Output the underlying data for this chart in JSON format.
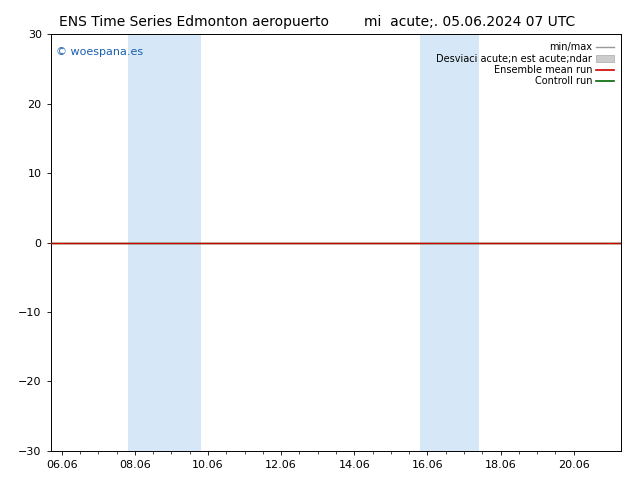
{
  "title_left": "ENS Time Series Edmonton aeropuerto",
  "title_right": "mi  acute;. 05.06.2024 07 UTC",
  "watermark": "© woespana.es",
  "ylim": [
    -30,
    30
  ],
  "yticks": [
    -30,
    -20,
    -10,
    0,
    10,
    20,
    30
  ],
  "xtick_labels": [
    "06.06",
    "08.06",
    "10.06",
    "12.06",
    "14.06",
    "16.06",
    "18.06",
    "20.06"
  ],
  "xtick_positions": [
    0,
    2,
    4,
    6,
    8,
    10,
    12,
    14
  ],
  "xmin": -0.3,
  "xmax": 15.3,
  "shaded_bands": [
    {
      "x_start": 1.8,
      "x_end": 3.8
    },
    {
      "x_start": 9.8,
      "x_end": 11.4
    }
  ],
  "shaded_color": "#d6e8f7",
  "hline_y": 0,
  "hline_color": "#000000",
  "green_line_y": 0,
  "green_line_color": "#006600",
  "red_line_y": 0,
  "red_line_color": "#cc0000",
  "legend_labels": [
    "min/max",
    "Desviaci acute;n est acute;ndar",
    "Ensemble mean run",
    "Controll run"
  ],
  "legend_line_colors": [
    "#999999",
    "#cccccc",
    "#cc0000",
    "#006600"
  ],
  "bg_color": "#ffffff",
  "spine_color": "#000000",
  "tick_color": "#000000",
  "title_fontsize": 10,
  "label_fontsize": 8,
  "watermark_fontsize": 8,
  "watermark_color": "#1a5fb0"
}
